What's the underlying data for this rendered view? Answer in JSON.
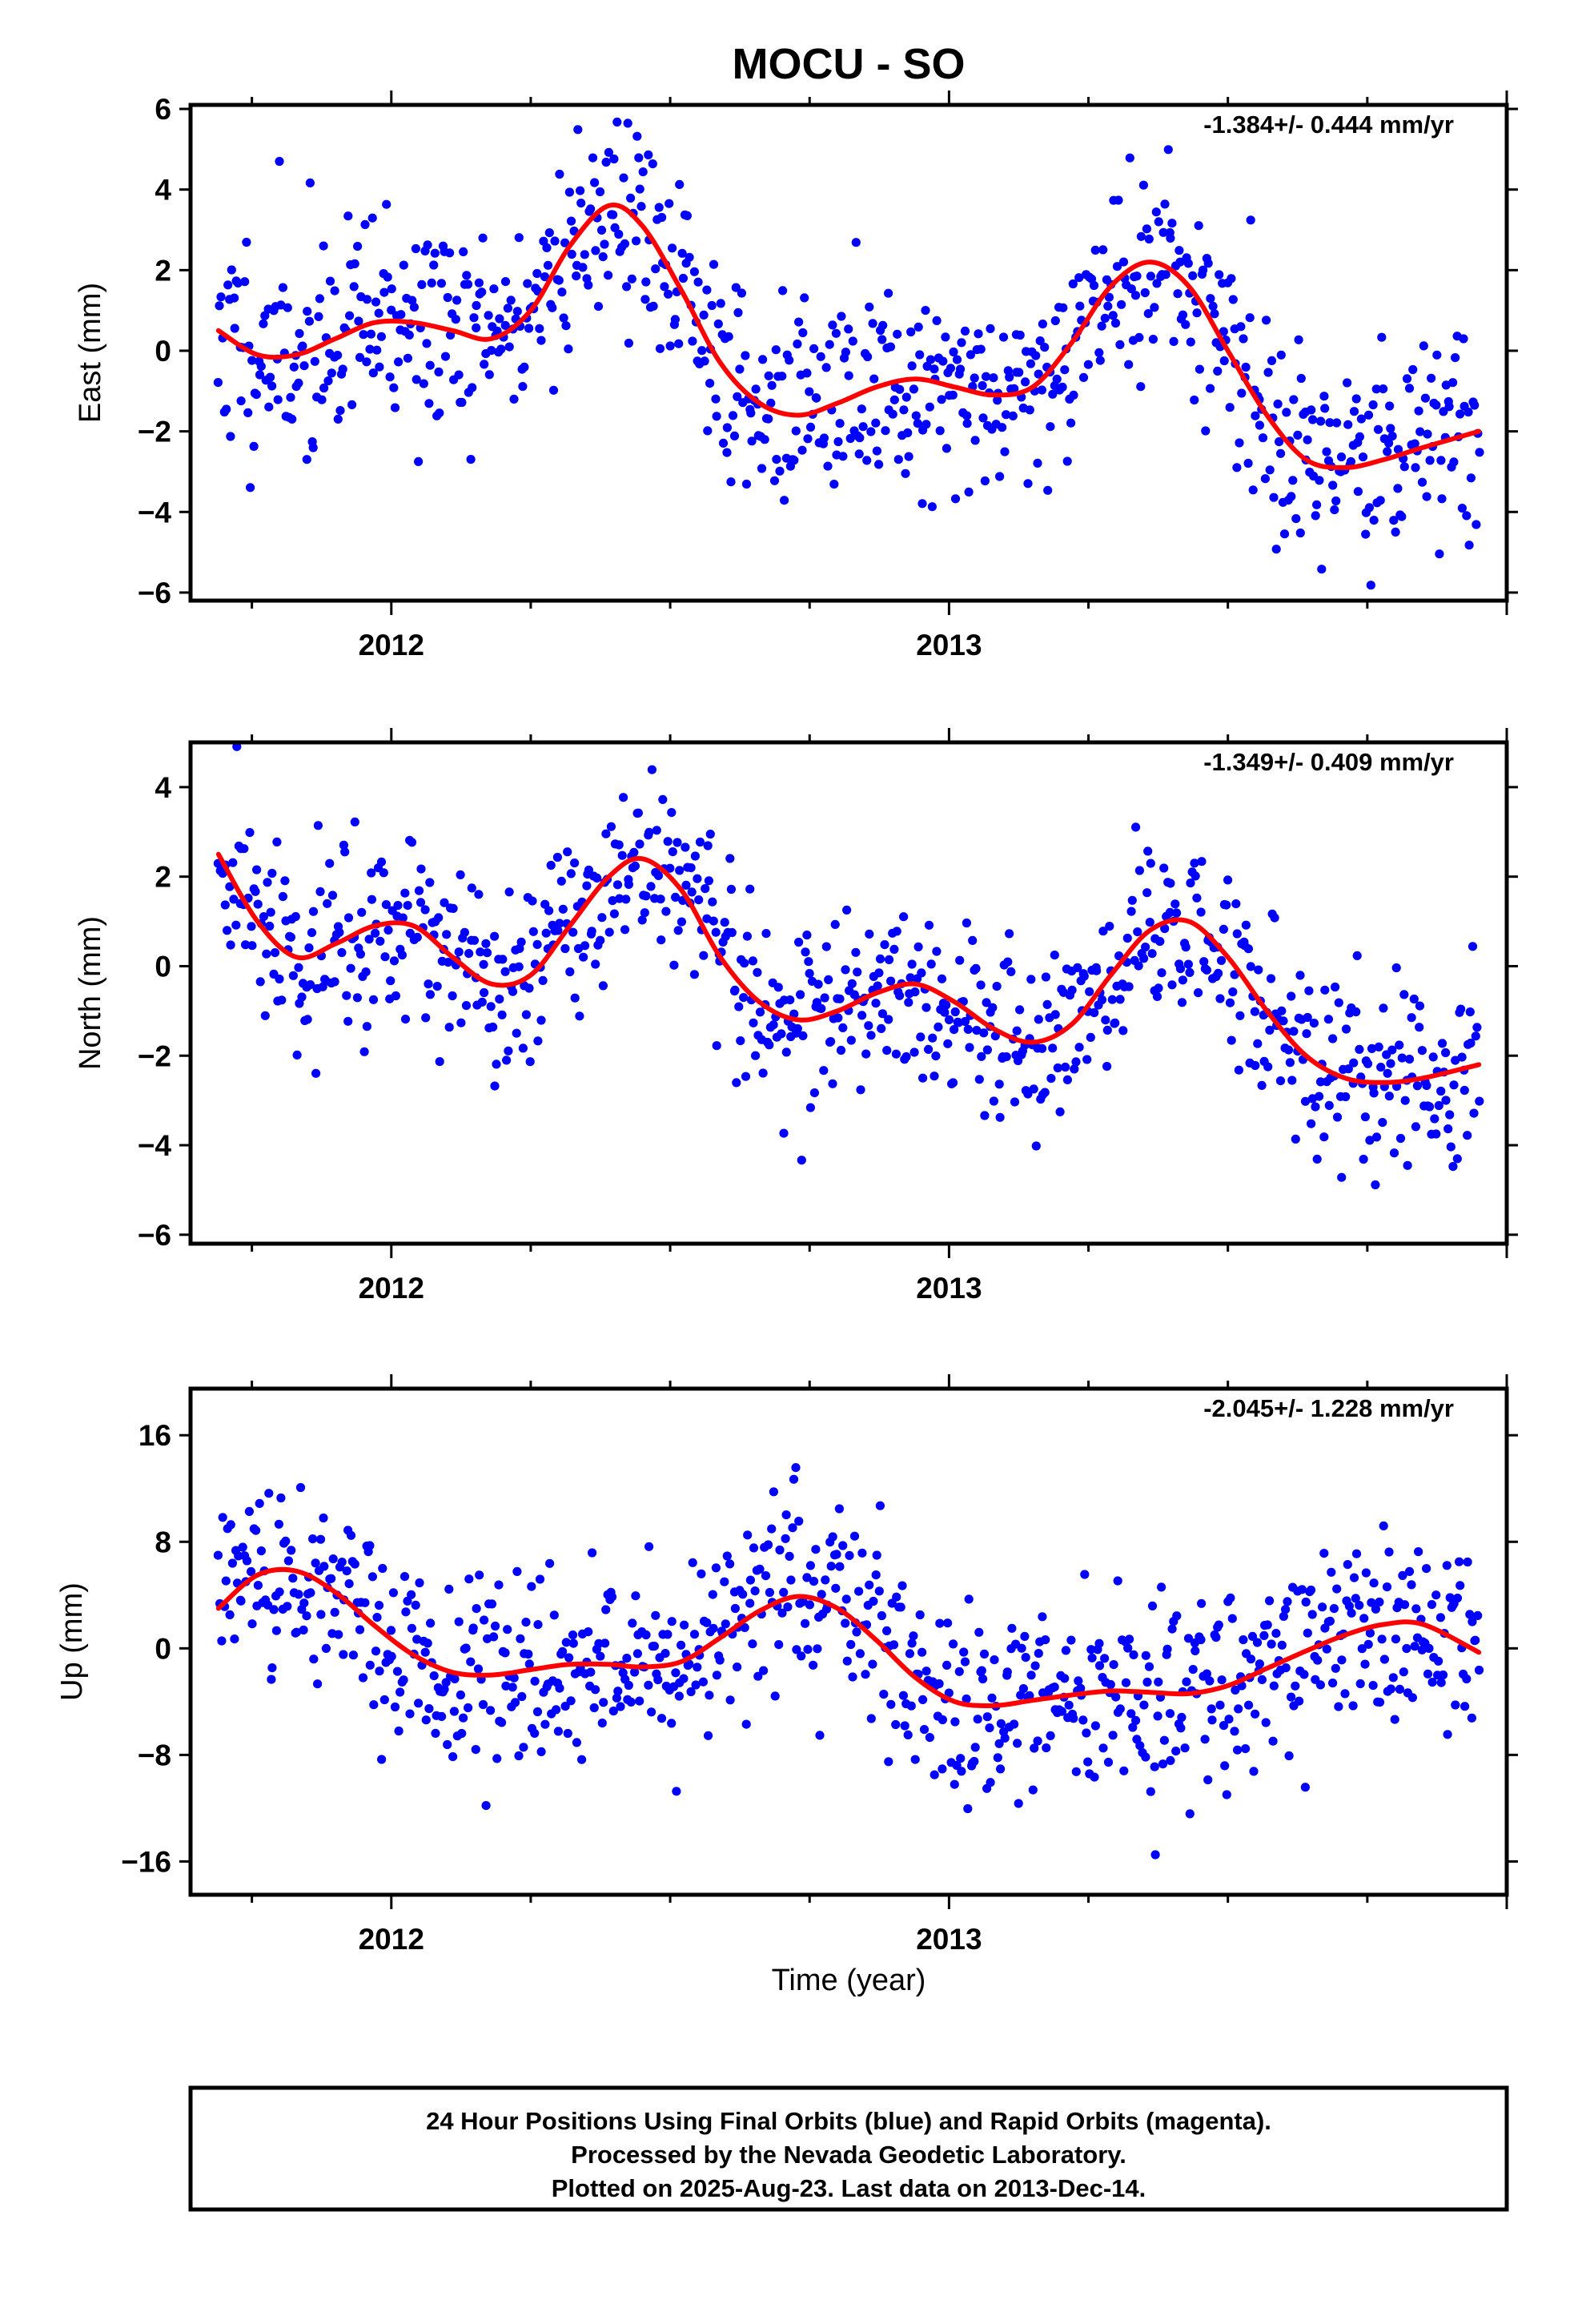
{
  "title": "MOCU - SO",
  "xlabel": "Time (year)",
  "footer": {
    "lines": [
      "24 Hour Positions Using Final Orbits (blue) and Rapid Orbits (magenta).",
      "Processed by the Nevada Geodetic Laboratory.",
      "Plotted on 2025-Aug-23. Last data on 2013-Dec-14."
    ]
  },
  "colors": {
    "final_orbits": "#0000ff",
    "model_fit": "#ff0000",
    "frame": "#000000"
  },
  "chart_data": [
    {
      "type": "scatter",
      "component": "east",
      "ylabel": "East (mm)",
      "rate_text": "-1.384+/- 0.444 mm/yr",
      "xlim": [
        2011.64,
        2014.0
      ],
      "ylim": [
        -6.2,
        6.1
      ],
      "x_ticks": [
        2012,
        2013
      ],
      "y_ticks": [
        -6,
        -4,
        -2,
        0,
        2,
        4,
        6
      ],
      "grid": false,
      "series": [
        {
          "name": "Final Orbits (blue)",
          "kind": "points",
          "x_start": 2011.69,
          "x_end": 2013.95,
          "count": 820
        },
        {
          "name": "fit",
          "kind": "line",
          "x": [
            2011.69,
            2011.76,
            2011.83,
            2011.9,
            2011.97,
            2012.04,
            2012.11,
            2012.18,
            2012.25,
            2012.32,
            2012.39,
            2012.45,
            2012.52,
            2012.59,
            2012.66,
            2012.73,
            2012.8,
            2012.87,
            2012.94,
            2013.01,
            2013.08,
            2013.15,
            2013.22,
            2013.29,
            2013.36,
            2013.43,
            2013.5,
            2013.57,
            2013.64,
            2013.71,
            2013.78,
            2013.85,
            2013.95
          ],
          "values": [
            0.5,
            -0.1,
            -0.1,
            0.3,
            0.7,
            0.7,
            0.5,
            0.3,
            1.0,
            2.6,
            3.6,
            3.1,
            1.5,
            -0.3,
            -1.3,
            -1.6,
            -1.3,
            -0.9,
            -0.7,
            -0.9,
            -1.1,
            -0.9,
            0.2,
            1.6,
            2.2,
            1.6,
            0.0,
            -1.6,
            -2.7,
            -2.9,
            -2.7,
            -2.4,
            -2.0
          ]
        }
      ]
    },
    {
      "type": "scatter",
      "component": "north",
      "ylabel": "North (mm)",
      "rate_text": "-1.349+/- 0.409 mm/yr",
      "xlim": [
        2011.64,
        2014.0
      ],
      "ylim": [
        -6.2,
        5.0
      ],
      "x_ticks": [
        2012,
        2013
      ],
      "y_ticks": [
        -6,
        -4,
        -2,
        0,
        2,
        4
      ],
      "grid": false,
      "series": [
        {
          "name": "Final Orbits (blue)",
          "kind": "points",
          "x_start": 2011.69,
          "x_end": 2013.95,
          "count": 820
        },
        {
          "name": "fit",
          "kind": "line",
          "x": [
            2011.69,
            2011.76,
            2011.83,
            2011.9,
            2011.97,
            2012.04,
            2012.11,
            2012.18,
            2012.25,
            2012.32,
            2012.39,
            2012.45,
            2012.52,
            2012.59,
            2012.66,
            2012.73,
            2012.8,
            2012.87,
            2012.94,
            2013.01,
            2013.08,
            2013.15,
            2013.22,
            2013.29,
            2013.36,
            2013.43,
            2013.5,
            2013.57,
            2013.64,
            2013.71,
            2013.78,
            2013.85,
            2013.95
          ],
          "values": [
            2.5,
            1.0,
            0.2,
            0.5,
            0.9,
            0.9,
            0.2,
            -0.4,
            -0.2,
            0.9,
            2.0,
            2.4,
            1.7,
            0.2,
            -0.8,
            -1.2,
            -1.0,
            -0.6,
            -0.4,
            -0.8,
            -1.4,
            -1.7,
            -1.3,
            -0.2,
            0.8,
            1.0,
            0.2,
            -1.0,
            -2.0,
            -2.5,
            -2.6,
            -2.5,
            -2.2
          ]
        }
      ]
    },
    {
      "type": "scatter",
      "component": "up",
      "ylabel": "Up (mm)",
      "rate_text": "-2.045+/- 1.228 mm/yr",
      "xlim": [
        2011.64,
        2014.0
      ],
      "ylim": [
        -18.5,
        19.5
      ],
      "x_ticks": [
        2012,
        2013
      ],
      "y_ticks": [
        -16,
        -8,
        0,
        8,
        16
      ],
      "y_tick_labels": [
        "−16",
        "−8",
        "0",
        "8",
        "16"
      ],
      "grid": false,
      "series": [
        {
          "name": "Final Orbits (blue)",
          "kind": "points",
          "x_start": 2011.69,
          "x_end": 2013.95,
          "count": 820
        },
        {
          "name": "fit",
          "kind": "line",
          "x": [
            2011.69,
            2011.76,
            2011.83,
            2011.9,
            2011.97,
            2012.04,
            2012.11,
            2012.18,
            2012.25,
            2012.32,
            2012.39,
            2012.45,
            2012.52,
            2012.59,
            2012.66,
            2012.73,
            2012.8,
            2012.87,
            2012.94,
            2013.01,
            2013.08,
            2013.15,
            2013.22,
            2013.29,
            2013.36,
            2013.43,
            2013.5,
            2013.57,
            2013.64,
            2013.71,
            2013.78,
            2013.85,
            2013.95
          ],
          "values": [
            3.0,
            5.5,
            5.8,
            4.2,
            1.7,
            -0.5,
            -1.8,
            -2.0,
            -1.6,
            -1.2,
            -1.2,
            -1.4,
            -1.0,
            0.8,
            2.8,
            3.9,
            3.0,
            0.6,
            -2.2,
            -4.0,
            -4.3,
            -3.9,
            -3.5,
            -3.2,
            -3.3,
            -3.4,
            -2.8,
            -1.5,
            -0.2,
            1.0,
            1.8,
            1.8,
            -0.3
          ]
        }
      ]
    }
  ]
}
